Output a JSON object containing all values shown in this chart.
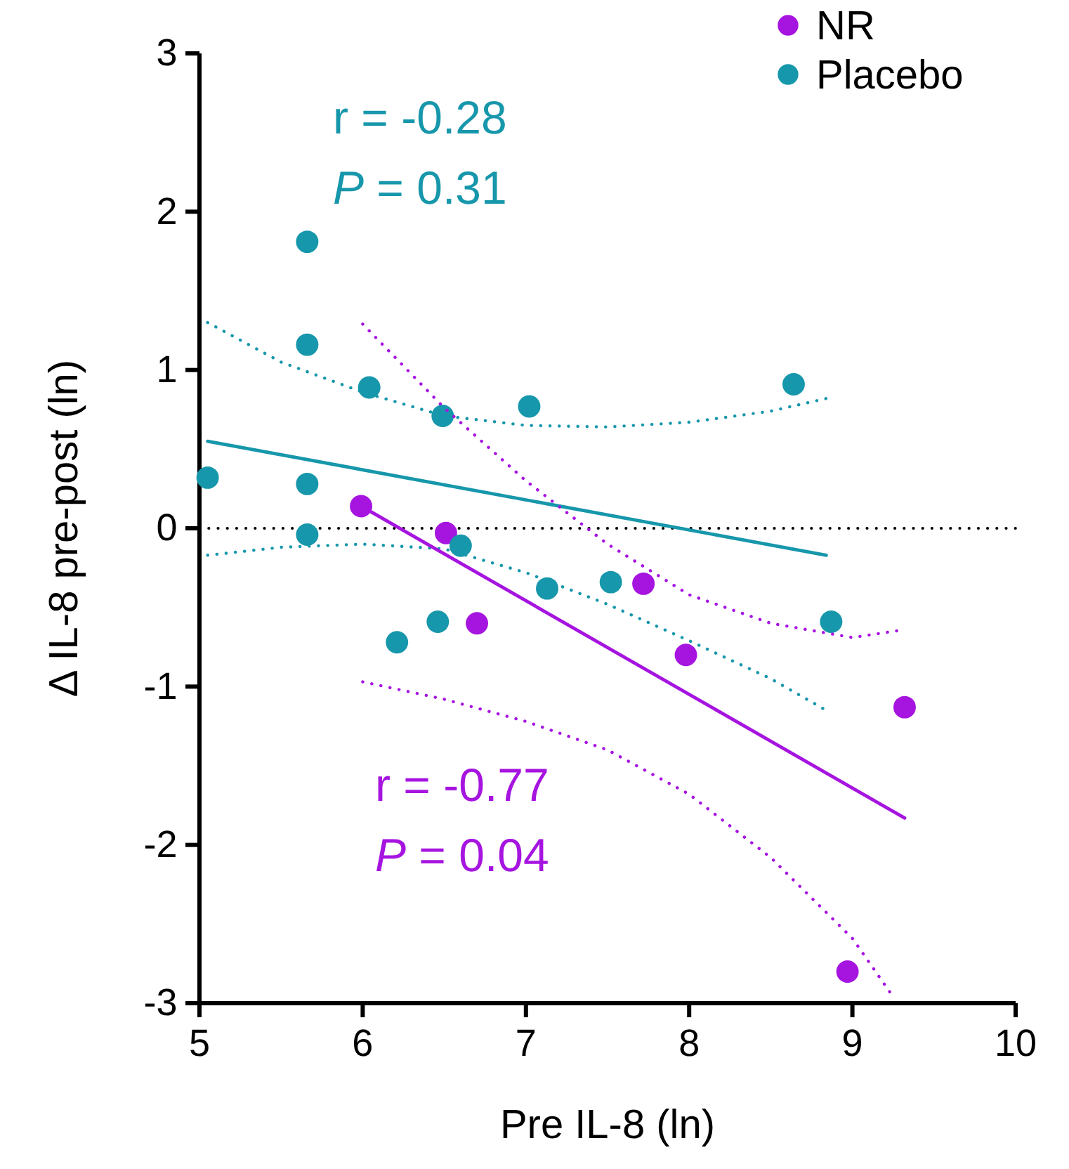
{
  "chart_data": {
    "type": "scatter",
    "xlabel": "Pre IL-8 (ln)",
    "ylabel": "Δ IL-8 pre-post (ln)",
    "xlim": [
      5,
      10
    ],
    "xticks": [
      5,
      6,
      7,
      8,
      9,
      10
    ],
    "ylim": [
      -3,
      3
    ],
    "yticks": [
      -3,
      -2,
      -1,
      0,
      1,
      2,
      3
    ],
    "grid": false,
    "legend": "top right",
    "marker": "circle",
    "ref_lines": [
      {
        "axis": "y",
        "value": 0,
        "color": "#000000",
        "line_style": "dotted"
      }
    ],
    "annotations": [
      "r = -0.28",
      "P = 0.31",
      "r = -0.77",
      "P = 0.04"
    ],
    "series": [
      {
        "name": "NR",
        "color": "#a614e0",
        "x": [
          5.99,
          6.51,
          6.7,
          7.72,
          7.98,
          9.32,
          8.97
        ],
        "values": [
          0.14,
          -0.03,
          -0.6,
          -0.35,
          -0.8,
          -1.13,
          -2.8
        ]
      },
      {
        "name": "Placebo",
        "color": "#1797ab",
        "x": [
          5.05,
          5.66,
          5.66,
          6.04,
          5.66,
          5.66,
          6.49,
          7.02,
          6.6,
          7.13,
          7.52,
          6.46,
          6.21,
          8.64,
          8.87
        ],
        "values": [
          0.32,
          1.81,
          1.16,
          0.89,
          0.28,
          -0.04,
          0.71,
          0.77,
          -0.11,
          -0.38,
          -0.34,
          -0.59,
          -0.72,
          0.91,
          -0.59
        ]
      },
      {
        "type": "line",
        "color": "#1797ab",
        "line_style": "solid",
        "marker": "none",
        "x": [
          5.05,
          8.84
        ],
        "values": [
          0.55,
          -0.17
        ]
      },
      {
        "type": "line",
        "color": "#1797ab",
        "line_style": "dotted",
        "marker": "none",
        "x": [
          5.05,
          5.5,
          6,
          6.5,
          7,
          7.5,
          8,
          8.5,
          8.84
        ],
        "values": [
          1.3,
          1.05,
          0.86,
          0.71,
          0.65,
          0.64,
          0.67,
          0.74,
          0.82
        ]
      },
      {
        "type": "line",
        "color": "#1797ab",
        "line_style": "dotted",
        "marker": "none",
        "x": [
          5.05,
          5.5,
          6,
          6.5,
          7,
          7.5,
          8,
          8.5,
          8.84
        ],
        "values": [
          -0.17,
          -0.12,
          -0.1,
          -0.13,
          -0.28,
          -0.48,
          -0.71,
          -0.95,
          -1.15
        ]
      },
      {
        "type": "line",
        "color": "#a614e0",
        "line_style": "solid",
        "marker": "none",
        "x": [
          5.99,
          9.32
        ],
        "values": [
          0.14,
          -1.83
        ]
      },
      {
        "type": "line",
        "color": "#a614e0",
        "line_style": "dotted",
        "marker": "none",
        "x": [
          6,
          6.5,
          7,
          7.5,
          8,
          8.5,
          9,
          9.32
        ],
        "values": [
          1.29,
          0.76,
          0.3,
          -0.1,
          -0.42,
          -0.6,
          -0.69,
          -0.64
        ]
      },
      {
        "type": "line",
        "color": "#a614e0",
        "line_style": "dotted",
        "marker": "none",
        "x": [
          6,
          6.5,
          7,
          7.5,
          8,
          8.5,
          9,
          9.25
        ],
        "values": [
          -0.97,
          -1.08,
          -1.22,
          -1.4,
          -1.68,
          -2.08,
          -2.59,
          -2.96
        ]
      }
    ]
  }
}
